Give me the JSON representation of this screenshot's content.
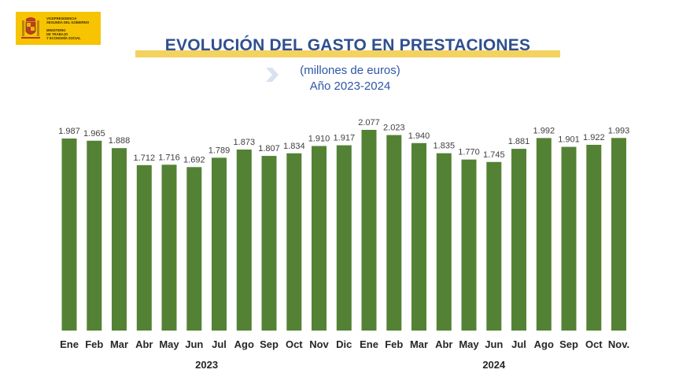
{
  "logo": {
    "text": "VICEPRESIDENCIA\nSEGUNDA DEL GOBIERNO\n\nMINISTERIO\nDE TRABAJO\nY ECONOMÍA SOCIAL",
    "background": "#f6c400"
  },
  "title": "EVOLUCIÓN DEL GASTO EN PRESTACIONES",
  "subtitle_line1": "(millones  de euros)",
  "subtitle_line2": "Año 2023-2024",
  "colors": {
    "bar": "#548235",
    "title": "#2f4f8e",
    "subtitle": "#2f56a6",
    "title_band": "#f3d25f"
  },
  "chart_data": {
    "type": "bar",
    "title": "EVOLUCIÓN DEL GASTO EN PRESTACIONES",
    "subtitle": "(millones  de euros) Año 2023-2024",
    "xlabel": "",
    "ylabel": "",
    "categories": [
      "Ene",
      "Feb",
      "Mar",
      "Abr",
      "May",
      "Jun",
      "Jul",
      "Ago",
      "Sep",
      "Oct",
      "Nov",
      "Dic",
      "Ene",
      "Feb",
      "Mar",
      "Abr",
      "May",
      "Jun",
      "Jul",
      "Ago",
      "Sep",
      "Oct",
      "Nov."
    ],
    "values": [
      1987,
      1965,
      1888,
      1712,
      1716,
      1692,
      1789,
      1873,
      1807,
      1834,
      1910,
      1917,
      2077,
      2023,
      1940,
      1835,
      1770,
      1745,
      1881,
      1992,
      1901,
      1922,
      1993
    ],
    "value_labels": [
      "1.987",
      "1.965",
      "1.888",
      "1.712",
      "1.716",
      "1.692",
      "1.789",
      "1.873",
      "1.807",
      "1.834",
      "1.910",
      "1.917",
      "2.077",
      "2.023",
      "1.940",
      "1.835",
      "1.770",
      "1.745",
      "1.881",
      "1.992",
      "1.901",
      "1.922",
      "1.993"
    ],
    "groups": [
      {
        "label": "2023",
        "start": 0,
        "end": 11
      },
      {
        "label": "2024",
        "start": 12,
        "end": 22
      }
    ],
    "ylim": [
      0,
      2077
    ],
    "grid": false,
    "legend": "none"
  }
}
